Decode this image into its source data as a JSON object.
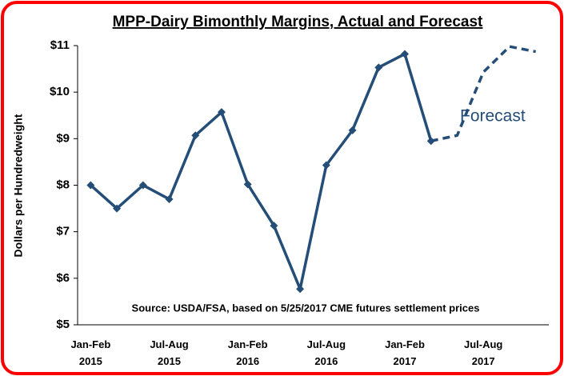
{
  "chart_data": {
    "type": "line",
    "title": "MPP-Dairy Bimonthly Margins, Actual and Forecast",
    "y_label": "Dollars per Hundredweight",
    "annotation": "Source:  USDA/FSA, based on 5/25/2017 CME futures settlement prices",
    "categories": [
      "Jan-Feb 2015",
      null,
      null,
      "Jul-Aug 2015",
      null,
      null,
      "Jan-Feb 2016",
      null,
      null,
      "Jul-Aug 2016",
      null,
      null,
      "Jan-Feb 2017",
      null,
      null,
      "Jul-Aug 2017",
      null,
      null
    ],
    "series": [
      {
        "color": "#244d77",
        "dash": false,
        "values": [
          8.0,
          7.5,
          8.0,
          7.7,
          9.07,
          9.57,
          8.02,
          7.13,
          5.77,
          8.43,
          9.18,
          10.53,
          10.82,
          8.95,
          null,
          null,
          null,
          null
        ]
      },
      {
        "name": "Forecast",
        "color": "#244d77",
        "dash": true,
        "values": [
          null,
          null,
          null,
          null,
          null,
          null,
          null,
          null,
          null,
          null,
          null,
          null,
          null,
          8.95,
          9.07,
          10.43,
          10.98,
          10.87
        ]
      }
    ],
    "ylim": [
      5,
      11
    ],
    "yticks": [
      {
        "value": 5,
        "label": "$5"
      },
      {
        "value": 6,
        "label": "$6"
      },
      {
        "value": 7,
        "label": "$7"
      },
      {
        "value": 8,
        "label": "$8"
      },
      {
        "value": 9,
        "label": "$9"
      },
      {
        "value": 10,
        "label": "$10"
      },
      {
        "value": 11,
        "label": "$11"
      }
    ],
    "grid": false
  }
}
